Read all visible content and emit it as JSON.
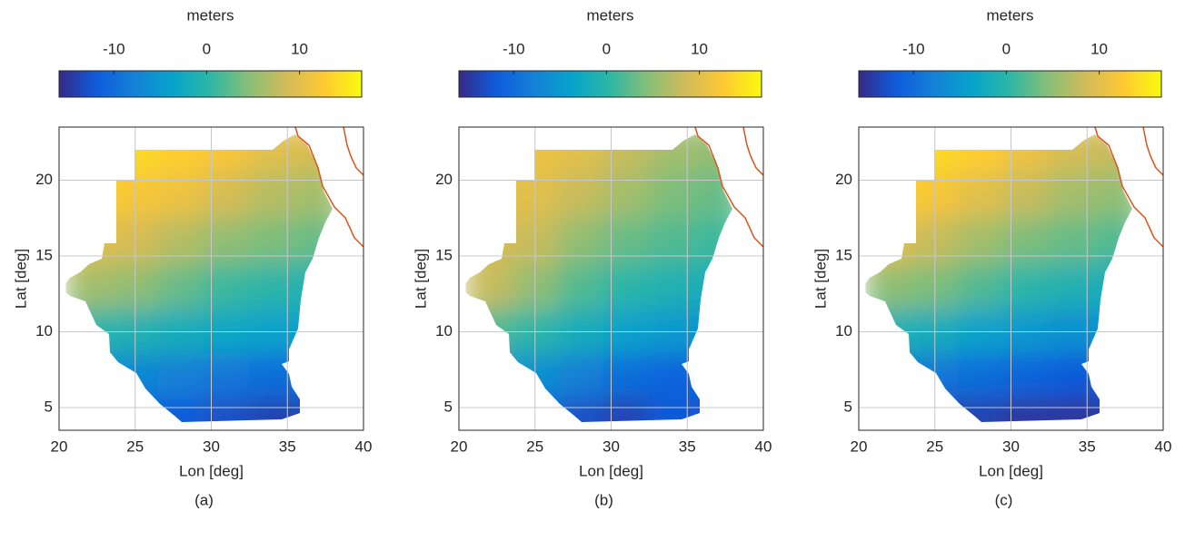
{
  "chart_data": [
    {
      "type": "heatmap",
      "caption": "(a)",
      "colorbar_label": "meters",
      "xlabel": "Lon [deg]",
      "ylabel": "Lat [deg]",
      "clim": [
        -15.9,
        16.7
      ],
      "cticks": [
        -10,
        0,
        10
      ],
      "xlim": [
        20,
        40
      ],
      "ylim": [
        3.5,
        23.5
      ],
      "xticks": [
        20,
        25,
        30,
        35,
        40
      ],
      "yticks": [
        5,
        10,
        15,
        20
      ],
      "grid": true,
      "x": [
        22,
        25,
        28,
        31,
        34,
        37
      ],
      "y": [
        22,
        19,
        16,
        13,
        10,
        7,
        4
      ],
      "z": [
        [
          14,
          14,
          13,
          12,
          10,
          9
        ],
        [
          13,
          12,
          11,
          9,
          7,
          6
        ],
        [
          10,
          9,
          7,
          5,
          4,
          3
        ],
        [
          6,
          5,
          3,
          1,
          0,
          -1
        ],
        [
          0,
          -1,
          -2,
          -3,
          -4,
          -4
        ],
        [
          -7,
          -7,
          -8,
          -9,
          -10,
          -10
        ],
        [
          -12,
          -12,
          -12,
          -13,
          -14,
          -14
        ]
      ]
    },
    {
      "type": "heatmap",
      "caption": "(b)",
      "colorbar_label": "meters",
      "xlabel": "Lon [deg]",
      "ylabel": "Lat [deg]",
      "clim": [
        -15.9,
        16.7
      ],
      "cticks": [
        -10,
        0,
        10
      ],
      "xlim": [
        20,
        40
      ],
      "ylim": [
        3.5,
        23.5
      ],
      "xticks": [
        20,
        25,
        30,
        35,
        40
      ],
      "yticks": [
        5,
        10,
        15,
        20
      ],
      "grid": true,
      "x": [
        22,
        25,
        28,
        31,
        34,
        37
      ],
      "y": [
        22,
        19,
        16,
        13,
        10,
        7,
        4
      ],
      "z": [
        [
          10,
          11,
          10,
          8,
          6,
          5
        ],
        [
          10,
          10,
          8,
          6,
          4,
          3
        ],
        [
          9,
          8,
          5,
          3,
          2,
          1
        ],
        [
          8,
          5,
          2,
          0,
          -1,
          -2
        ],
        [
          2,
          0,
          -2,
          -4,
          -5,
          -6
        ],
        [
          -6,
          -6,
          -8,
          -10,
          -11,
          -11
        ],
        [
          -11,
          -12,
          -13,
          -14,
          -12,
          -13
        ]
      ]
    },
    {
      "type": "heatmap",
      "caption": "(c)",
      "colorbar_label": "meters",
      "xlabel": "Lon [deg]",
      "ylabel": "Lat [deg]",
      "clim": [
        -15.9,
        16.7
      ],
      "cticks": [
        -10,
        0,
        10
      ],
      "xlim": [
        20,
        40
      ],
      "ylim": [
        3.5,
        23.5
      ],
      "xticks": [
        20,
        25,
        30,
        35,
        40
      ],
      "yticks": [
        5,
        10,
        15,
        20
      ],
      "grid": true,
      "x": [
        22,
        25,
        28,
        31,
        34,
        37
      ],
      "y": [
        22,
        19,
        16,
        13,
        10,
        7,
        4
      ],
      "z": [
        [
          15,
          14,
          13,
          11,
          9,
          8
        ],
        [
          13,
          12,
          10,
          8,
          6,
          5
        ],
        [
          10,
          8,
          6,
          4,
          3,
          2
        ],
        [
          5,
          4,
          2,
          0,
          -1,
          -2
        ],
        [
          -1,
          -2,
          -4,
          -5,
          -6,
          -6
        ],
        [
          -8,
          -9,
          -10,
          -11,
          -12,
          -12
        ],
        [
          -13,
          -14,
          -14,
          -15,
          -15,
          -15
        ]
      ]
    }
  ]
}
